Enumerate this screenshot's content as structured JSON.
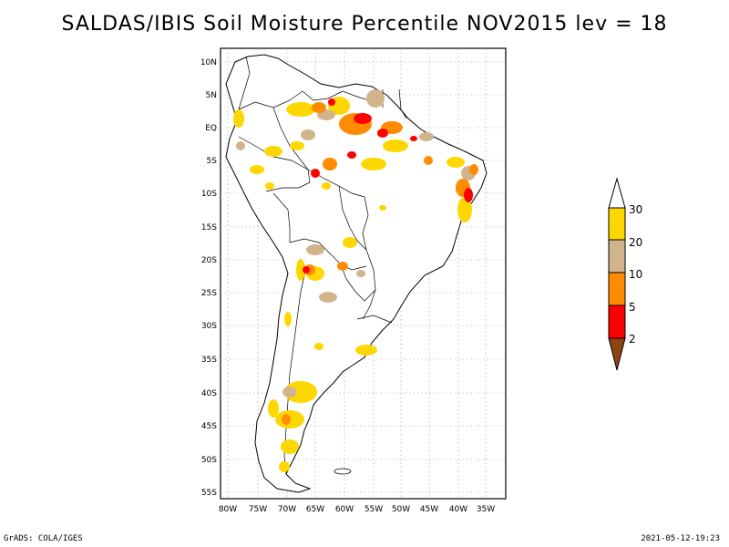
{
  "title": "SALDAS/IBIS Soil Moisture Percentile NOV2015 lev = 18",
  "footer": {
    "left": "GrADS: COLA/IGES",
    "right": "2021-05-12-19:23"
  },
  "axes": {
    "lat_labels": [
      "10N",
      "5N",
      "EQ",
      "5S",
      "10S",
      "15S",
      "20S",
      "25S",
      "30S",
      "35S",
      "40S",
      "45S",
      "50S",
      "55S"
    ],
    "lon_labels": [
      "80W",
      "75W",
      "70W",
      "65W",
      "60W",
      "55W",
      "50W",
      "45W",
      "40W",
      "35W"
    ],
    "lat_range": [
      -56,
      11
    ],
    "lon_range": [
      -81,
      -33
    ]
  },
  "colorbar": {
    "labels": [
      "30",
      "20",
      "10",
      "5",
      "2"
    ],
    "colors": {
      "above30": "#ffffff",
      "20to30": "#ffd700",
      "10to20": "#d2b48c",
      "5to10": "#ff8c00",
      "2to5": "#ff0000",
      "below2": "#8b4513"
    }
  },
  "colors": {
    "land_outline": "#000000",
    "grid": "#999999"
  }
}
